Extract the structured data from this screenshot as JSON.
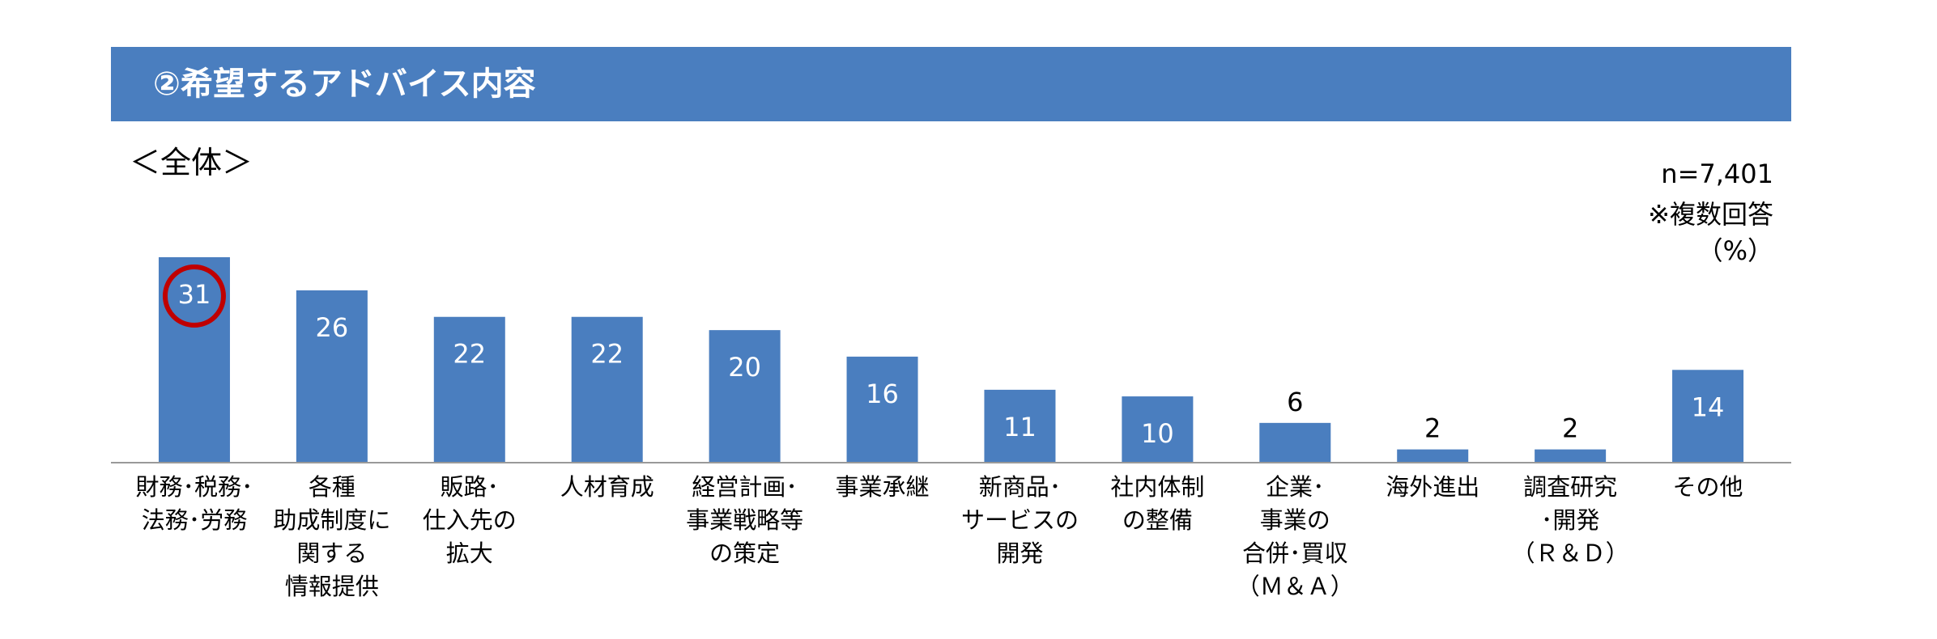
{
  "chart_data": {
    "type": "bar",
    "title": "②希望するアドバイス内容",
    "subtitle": "＜全体＞",
    "notes": [
      "n=7,401",
      "※複数回答",
      "（%）"
    ],
    "categories": [
      "財務･税務･\n法務･労務",
      "各種\n助成制度に\n関する\n情報提供",
      "販路･\n仕入先の\n拡大",
      "人材育成",
      "経営計画･\n事業戦略等\nの策定",
      "事業承継",
      "新商品･\nサービスの\n開発",
      "社内体制\nの整備",
      "企業･\n事業の\n合併･買収\n（Ｍ＆Ａ）",
      "海外進出",
      "調査研究\n･開発\n（Ｒ＆Ｄ）",
      "その他"
    ],
    "values": [
      31,
      26,
      22,
      22,
      20,
      16,
      11,
      10,
      6,
      2,
      2,
      14
    ],
    "color": "#4a7ebf",
    "highlight_color": "#c00000"
  }
}
